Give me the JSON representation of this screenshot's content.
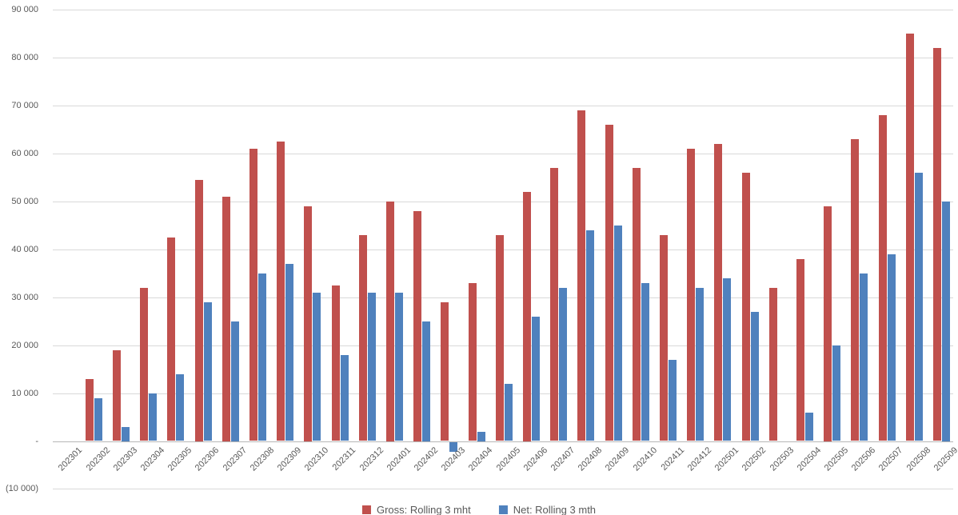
{
  "chart_data": {
    "type": "bar",
    "title": "",
    "xlabel": "",
    "ylabel": "",
    "grid": "horizontal",
    "legend_position": "bottom",
    "ylim": [
      -10000,
      90000
    ],
    "ytick_interval": 10000,
    "yticks": [
      {
        "value": 90000,
        "label": "90 000"
      },
      {
        "value": 80000,
        "label": "80 000"
      },
      {
        "value": 70000,
        "label": "70 000"
      },
      {
        "value": 60000,
        "label": "60 000"
      },
      {
        "value": 50000,
        "label": "50 000"
      },
      {
        "value": 40000,
        "label": "40 000"
      },
      {
        "value": 30000,
        "label": "30 000"
      },
      {
        "value": 20000,
        "label": "20 000"
      },
      {
        "value": 10000,
        "label": "10 000"
      },
      {
        "value": 0,
        "label": "-"
      },
      {
        "value": -10000,
        "label": "(10 000)"
      }
    ],
    "categories": [
      "202301",
      "202302",
      "202303",
      "202304",
      "202305",
      "202306",
      "202307",
      "202308",
      "202309",
      "202310",
      "202311",
      "202312",
      "202401",
      "202402",
      "202403",
      "202404",
      "202405",
      "202406",
      "202407",
      "202408",
      "202409",
      "202410",
      "202411",
      "202412",
      "202501",
      "202502",
      "202503",
      "202504",
      "202505",
      "202506",
      "202507",
      "202508",
      "202509"
    ],
    "series": [
      {
        "name": "Gross: Rolling 3 mht",
        "color": "#C0504D",
        "values": [
          0,
          13000,
          19000,
          32000,
          42500,
          54500,
          51000,
          61000,
          62500,
          49000,
          32500,
          43000,
          50000,
          48000,
          29000,
          33000,
          43000,
          52000,
          57000,
          69000,
          66000,
          57000,
          43000,
          61000,
          62000,
          56000,
          32000,
          38000,
          49000,
          63000,
          68000,
          85000,
          82000
        ]
      },
      {
        "name": "Net: Rolling 3 mth",
        "color": "#4F81BD",
        "values": [
          0,
          9000,
          3000,
          10000,
          14000,
          29000,
          25000,
          35000,
          37000,
          31000,
          18000,
          31000,
          31000,
          25000,
          -2000,
          2000,
          12000,
          26000,
          32000,
          44000,
          45000,
          33000,
          17000,
          32000,
          34000,
          27000,
          0,
          6000,
          20000,
          35000,
          39000,
          56000,
          50000
        ]
      }
    ],
    "colors": {
      "gross": "#C0504D",
      "net": "#4F81BD",
      "gridline": "#D9D9D9",
      "axis_line": "#B7B7B7",
      "tick_text": "#595959"
    }
  }
}
